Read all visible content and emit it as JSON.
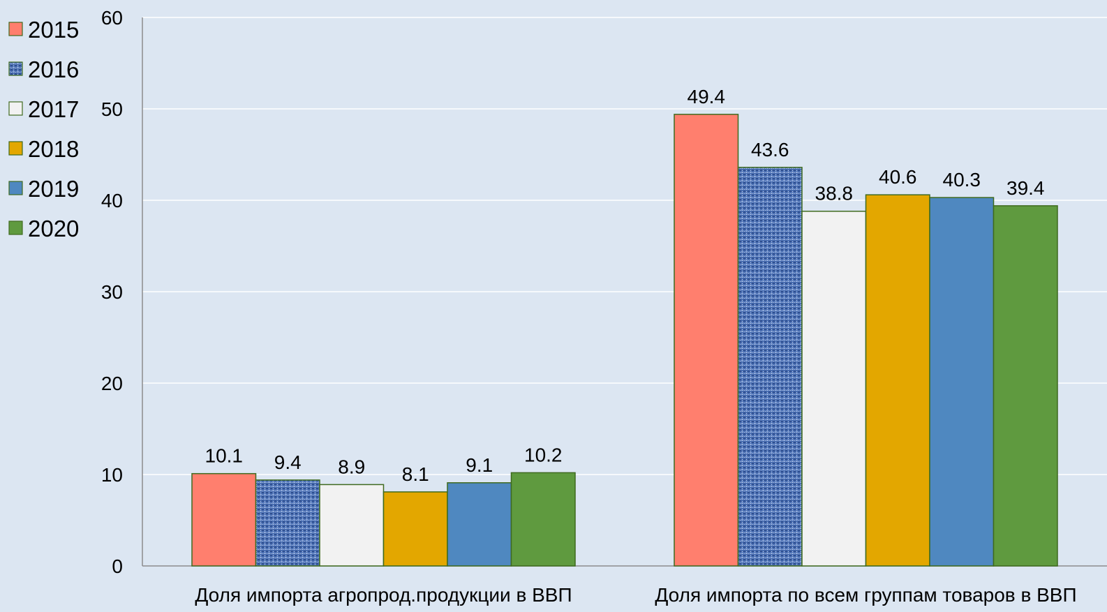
{
  "chart_data": {
    "type": "bar",
    "title": "",
    "xlabel": "",
    "ylabel": "",
    "ylim": [
      0,
      60
    ],
    "yticks": [
      0,
      10,
      20,
      30,
      40,
      50,
      60
    ],
    "grid": true,
    "legend_position": "left",
    "categories": [
      "Доля импорта агропрод.продукции в ВВП",
      "Доля импорта  по всем группам товаров в ВВП"
    ],
    "series": [
      {
        "name": "2015",
        "values": [
          10.1,
          49.4
        ],
        "color": "#ff7f6e",
        "pattern": "solid"
      },
      {
        "name": "2016",
        "values": [
          9.4,
          43.6
        ],
        "color": "#4a6fb3",
        "pattern": "textured-blue"
      },
      {
        "name": "2017",
        "values": [
          8.9,
          38.8
        ],
        "color": "#f2f2f2",
        "pattern": "solid"
      },
      {
        "name": "2018",
        "values": [
          8.1,
          40.6
        ],
        "color": "#e3a700",
        "pattern": "solid"
      },
      {
        "name": "2019",
        "values": [
          9.1,
          40.3
        ],
        "color": "#4f88c0",
        "pattern": "solid"
      },
      {
        "name": "2020",
        "values": [
          10.2,
          39.4
        ],
        "color": "#5f9a3f",
        "pattern": "solid"
      }
    ]
  }
}
